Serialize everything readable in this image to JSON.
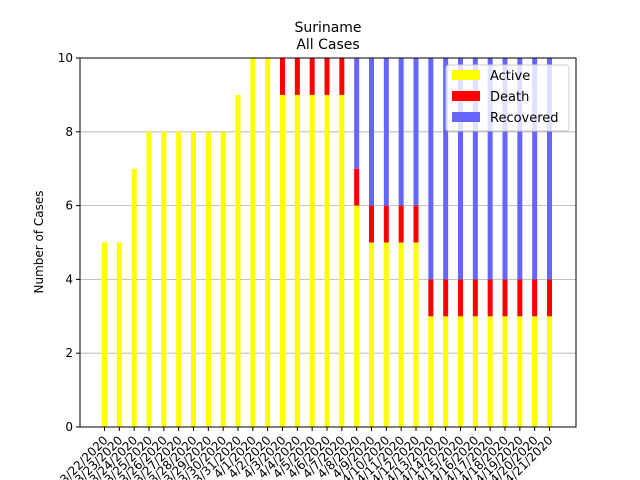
{
  "chart_data": {
    "type": "bar",
    "stacked": true,
    "title": "Suriname",
    "subtitle": "All Cases",
    "xlabel": "",
    "ylabel": "Number of Cases",
    "ylim": [
      0,
      10
    ],
    "yticks": [
      0,
      2,
      4,
      6,
      8,
      10
    ],
    "grid": "horizontal",
    "legend_position": "top-right",
    "categories": [
      "3/22/2020",
      "3/23/2020",
      "3/24/2020",
      "3/25/2020",
      "3/26/2020",
      "3/27/2020",
      "3/28/2020",
      "3/29/2020",
      "3/30/2020",
      "3/31/2020",
      "4/1/2020",
      "4/2/2020",
      "4/3/2020",
      "4/4/2020",
      "4/5/2020",
      "4/6/2020",
      "4/7/2020",
      "4/8/2020",
      "4/9/2020",
      "4/10/2020",
      "4/11/2020",
      "4/12/2020",
      "4/13/2020",
      "4/14/2020",
      "4/15/2020",
      "4/16/2020",
      "4/17/2020",
      "4/18/2020",
      "4/19/2020",
      "4/20/2020",
      "4/21/2020"
    ],
    "series": [
      {
        "name": "Active",
        "color": "#ffff00",
        "values": [
          5,
          5,
          7,
          8,
          8,
          8,
          8,
          8,
          8,
          9,
          10,
          10,
          9,
          9,
          9,
          9,
          9,
          6,
          5,
          5,
          5,
          5,
          3,
          3,
          3,
          3,
          3,
          3,
          3,
          3,
          3
        ]
      },
      {
        "name": "Death",
        "color": "#ff0000",
        "values": [
          0,
          0,
          0,
          0,
          0,
          0,
          0,
          0,
          0,
          0,
          0,
          0,
          1,
          1,
          1,
          1,
          1,
          1,
          1,
          1,
          1,
          1,
          1,
          1,
          1,
          1,
          1,
          1,
          1,
          1,
          1
        ]
      },
      {
        "name": "Recovered",
        "color": "#6666ff",
        "values": [
          0,
          0,
          0,
          0,
          0,
          0,
          0,
          0,
          0,
          0,
          0,
          0,
          0,
          0,
          0,
          0,
          0,
          3,
          4,
          4,
          4,
          4,
          6,
          6,
          6,
          6,
          6,
          6,
          6,
          6,
          6
        ]
      }
    ]
  }
}
